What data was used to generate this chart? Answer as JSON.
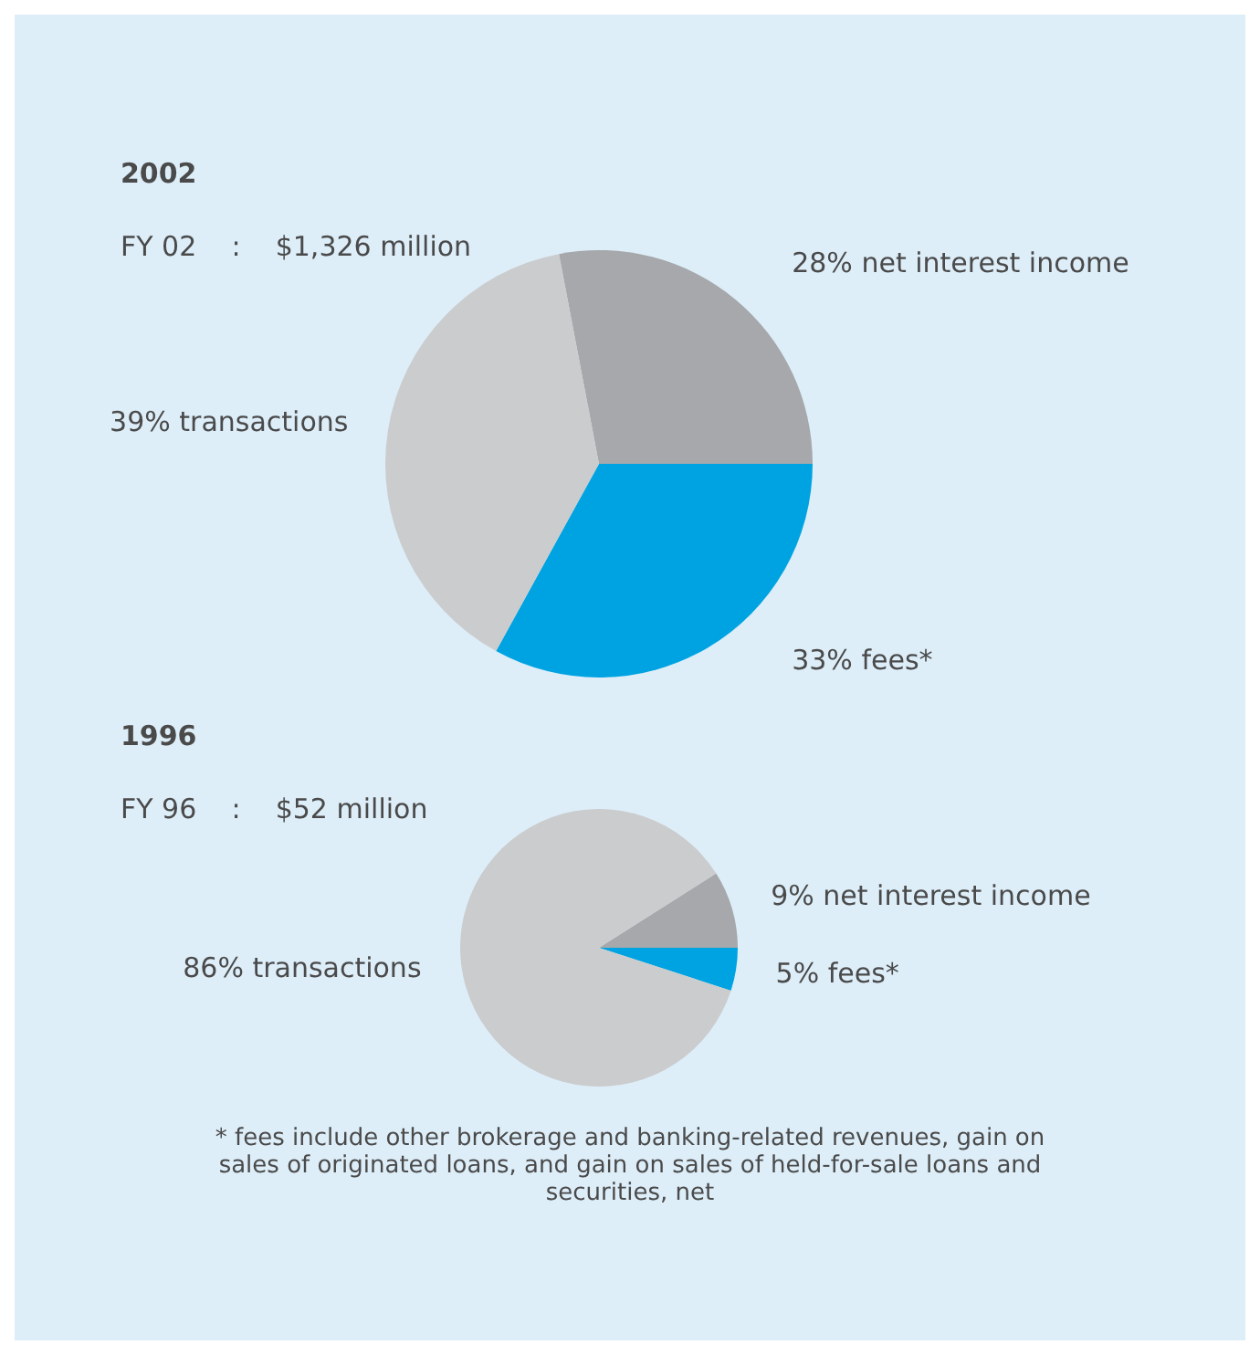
{
  "chart_data": [
    {
      "type": "pie",
      "title": "2002",
      "subtitle": "FY 02    :    $1,326 million",
      "categories": [
        "net interest income",
        "fees*",
        "transactions"
      ],
      "values": [
        28,
        33,
        39
      ],
      "value_labels": [
        "28%",
        "33%",
        "39%"
      ],
      "colors": [
        "#a6a8ab",
        "#00a3e1",
        "#cbcccd"
      ],
      "legend": false
    },
    {
      "type": "pie",
      "title": "1996",
      "subtitle": "FY 96    :    $52 million",
      "categories": [
        "net interest income",
        "fees*",
        "transactions"
      ],
      "values": [
        9,
        5,
        86
      ],
      "value_labels": [
        "9%",
        "5%",
        "86%"
      ],
      "colors": [
        "#a6a8ab",
        "#00a3e1",
        "#cbcccd"
      ],
      "legend": false,
      "annotations": [
        "* fees include other brokerage and banking-related revenues, gain on sales of originated loans, and gain on sales of held-for-sale loans and securities, net"
      ]
    }
  ]
}
